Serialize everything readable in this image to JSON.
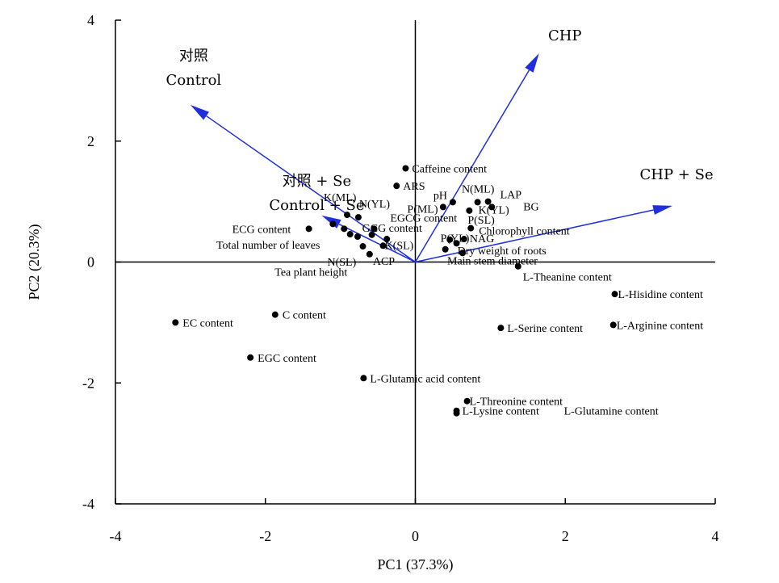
{
  "chart_data": {
    "type": "scatter",
    "xlabel": "PC1 (37.3%)",
    "ylabel": "PC2 (20.3%)",
    "xlim": [
      -4,
      4
    ],
    "ylim": [
      -4,
      4
    ],
    "xticks": [
      "-4",
      "-2",
      "0",
      "2",
      "4"
    ],
    "yticks": [
      "4",
      "2",
      "0",
      "-2",
      "-4"
    ],
    "vector_color": "#1f2fe0",
    "points": [
      {
        "label": "Caffeine content",
        "x": -0.13,
        "y": 1.55
      },
      {
        "label": "ARS",
        "x": -0.25,
        "y": 1.26
      },
      {
        "label": "pH",
        "x": 0.37,
        "y": 0.91
      },
      {
        "label": "N(ML)",
        "x": 0.5,
        "y": 0.99
      },
      {
        "label": "LAP",
        "x": 0.97,
        "y": 1.0
      },
      {
        "label": "BG",
        "x": 1.02,
        "y": 0.91
      },
      {
        "label": "K(YL)",
        "x": 0.83,
        "y": 0.99
      },
      {
        "label": "P(SL)",
        "x": 0.72,
        "y": 0.85
      },
      {
        "label": "Chlorophyll content",
        "x": 0.74,
        "y": 0.56
      },
      {
        "label": "NAG",
        "x": 0.65,
        "y": 0.38
      },
      {
        "label": "P(YL)",
        "x": 0.55,
        "y": 0.31
      },
      {
        "label": "Dry weight of roots",
        "x": 0.4,
        "y": 0.21
      },
      {
        "label": "Main stem diameter",
        "x": 0.63,
        "y": 0.15
      },
      {
        "label": "L-Theanine content",
        "x": 1.37,
        "y": -0.07
      },
      {
        "label": "K(ML)",
        "x": -0.91,
        "y": 0.78
      },
      {
        "label": "N(YL)",
        "x": -0.76,
        "y": 0.74
      },
      {
        "label": "P(ML)",
        "x": -0.55,
        "y": 0.55
      },
      {
        "label": "ECG content",
        "x": -1.42,
        "y": 0.55
      },
      {
        "label": "EGCG content",
        "x": -1.1,
        "y": 0.63
      },
      {
        "label": "Total number of leaves",
        "x": -0.77,
        "y": 0.42
      },
      {
        "label": "GCG content",
        "x": -0.58,
        "y": 0.45
      },
      {
        "label": "K(SL)",
        "x": -0.43,
        "y": 0.27
      },
      {
        "label": "N(SL)",
        "x": -0.7,
        "y": 0.26
      },
      {
        "label": "ACP",
        "x": -0.61,
        "y": 0.13
      },
      {
        "label": "Tea plant height",
        "x": -0.95,
        "y": 0.55
      },
      {
        "label": "EC content",
        "x": -3.2,
        "y": -1.0
      },
      {
        "label": "C content",
        "x": -1.87,
        "y": -0.87
      },
      {
        "label": "EGC content",
        "x": -2.2,
        "y": -1.58
      },
      {
        "label": "L-Glutamic acid content",
        "x": -0.69,
        "y": -1.92
      },
      {
        "label": "L-Threonine content",
        "x": 0.69,
        "y": -2.3
      },
      {
        "label": "L-Lysine content",
        "x": 0.55,
        "y": -2.46
      },
      {
        "label": "L-Glutamine content",
        "x": 0.55,
        "y": -2.5
      },
      {
        "label": "L-Serine content",
        "x": 1.14,
        "y": -1.09
      },
      {
        "label": "L-Hisidine content",
        "x": 2.66,
        "y": -0.53
      },
      {
        "label": "L-Arginine content",
        "x": 2.64,
        "y": -1.04
      },
      {
        "label": "",
        "x": -0.38,
        "y": 0.38
      },
      {
        "label": "",
        "x": -0.87,
        "y": 0.46
      },
      {
        "label": "",
        "x": 0.46,
        "y": 0.37
      }
    ],
    "vectors": [
      {
        "label": "对照",
        "label2": "Control",
        "x": -3.0,
        "y": 2.6
      },
      {
        "label": "CHP",
        "x": 1.65,
        "y": 3.45
      },
      {
        "label": "对照 + Se",
        "label2": "Control + Se",
        "x": -1.25,
        "y": 0.77
      },
      {
        "label": "CHP + Se",
        "x": 3.43,
        "y": 0.93
      }
    ]
  }
}
